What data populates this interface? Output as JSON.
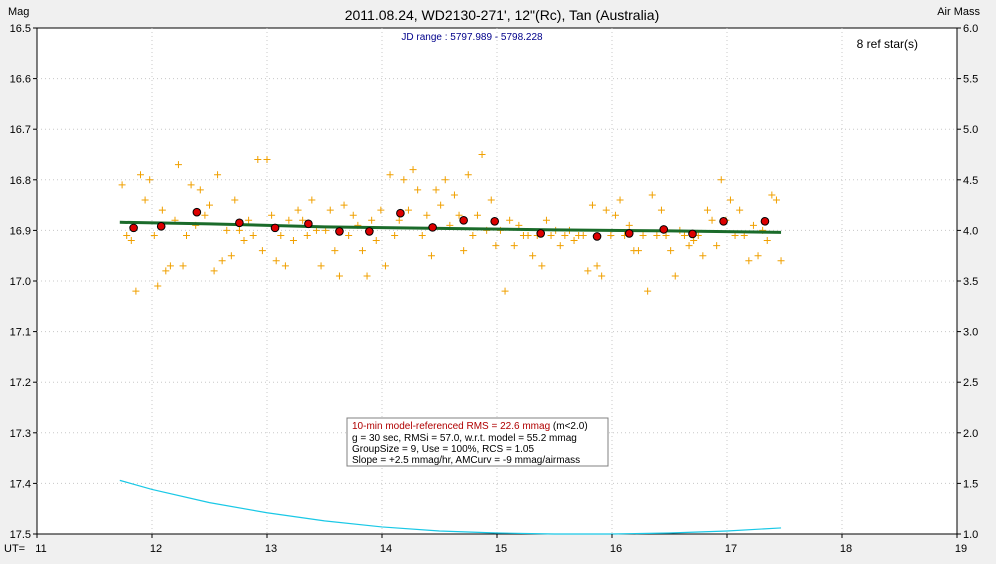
{
  "chart_data": {
    "type": "scatter",
    "title": "2011.08.24, WD2130-271', 12\"(Rc), Tan (Australia)",
    "subtitle": "JD range : 5797.989 - 5798.228",
    "ylabel_left": "Mag",
    "ylabel_right": "Air Mass",
    "xlabel_prefix": "UT=",
    "ref_stars": "8 ref star(s)",
    "xlim": [
      11,
      19
    ],
    "ylim_left": [
      16.5,
      17.5
    ],
    "ylim_right": [
      6.0,
      1.0
    ],
    "left_reversed": true,
    "x_ticks": [
      "11",
      "12",
      "13",
      "14",
      "15",
      "16",
      "17",
      "18",
      "19"
    ],
    "y_ticks_left": [
      "16.5",
      "16.6",
      "16.7",
      "16.8",
      "16.9",
      "17.0",
      "17.1",
      "17.2",
      "17.3",
      "17.4",
      "17.5"
    ],
    "y_ticks_right": [
      "6.0",
      "5.5",
      "5.0",
      "4.5",
      "4.0",
      "3.5",
      "3.0",
      "2.5",
      "2.0",
      "1.5",
      "1.0"
    ],
    "grid": true,
    "colors": {
      "points": "#f0a000",
      "group": "#dd0000",
      "model": "#1a6b2a",
      "airmass": "#19c8e6"
    },
    "series": [
      {
        "kind": "individual_points",
        "marker": "plus",
        "points": [
          [
            11.74,
            16.81
          ],
          [
            11.78,
            16.91
          ],
          [
            11.82,
            16.92
          ],
          [
            11.86,
            17.02
          ],
          [
            11.9,
            16.79
          ],
          [
            11.94,
            16.84
          ],
          [
            11.98,
            16.8
          ],
          [
            12.02,
            16.91
          ],
          [
            12.05,
            17.01
          ],
          [
            12.09,
            16.86
          ],
          [
            12.12,
            16.98
          ],
          [
            12.16,
            16.97
          ],
          [
            12.2,
            16.88
          ],
          [
            12.23,
            16.77
          ],
          [
            12.27,
            16.97
          ],
          [
            12.3,
            16.91
          ],
          [
            12.34,
            16.81
          ],
          [
            12.38,
            16.89
          ],
          [
            12.42,
            16.82
          ],
          [
            12.46,
            16.87
          ],
          [
            12.5,
            16.85
          ],
          [
            12.54,
            16.98
          ],
          [
            12.57,
            16.79
          ],
          [
            12.61,
            16.96
          ],
          [
            12.65,
            16.9
          ],
          [
            12.69,
            16.95
          ],
          [
            12.72,
            16.84
          ],
          [
            12.76,
            16.9
          ],
          [
            12.8,
            16.92
          ],
          [
            12.84,
            16.88
          ],
          [
            12.88,
            16.91
          ],
          [
            12.92,
            16.76
          ],
          [
            12.96,
            16.94
          ],
          [
            13.0,
            16.76
          ],
          [
            13.04,
            16.87
          ],
          [
            13.08,
            16.96
          ],
          [
            13.12,
            16.91
          ],
          [
            13.16,
            16.97
          ],
          [
            13.19,
            16.88
          ],
          [
            13.23,
            16.92
          ],
          [
            13.27,
            16.86
          ],
          [
            13.31,
            16.88
          ],
          [
            13.35,
            16.91
          ],
          [
            13.39,
            16.84
          ],
          [
            13.43,
            16.9
          ],
          [
            13.47,
            16.97
          ],
          [
            13.51,
            16.9
          ],
          [
            13.55,
            16.86
          ],
          [
            13.59,
            16.94
          ],
          [
            13.63,
            16.99
          ],
          [
            13.67,
            16.85
          ],
          [
            13.71,
            16.91
          ],
          [
            13.75,
            16.87
          ],
          [
            13.79,
            16.89
          ],
          [
            13.83,
            16.94
          ],
          [
            13.87,
            16.99
          ],
          [
            13.91,
            16.88
          ],
          [
            13.95,
            16.92
          ],
          [
            13.99,
            16.86
          ],
          [
            14.03,
            16.97
          ],
          [
            14.07,
            16.79
          ],
          [
            14.11,
            16.91
          ],
          [
            14.15,
            16.88
          ],
          [
            14.19,
            16.8
          ],
          [
            14.23,
            16.86
          ],
          [
            14.27,
            16.78
          ],
          [
            14.31,
            16.82
          ],
          [
            14.35,
            16.91
          ],
          [
            14.39,
            16.87
          ],
          [
            14.43,
            16.95
          ],
          [
            14.47,
            16.82
          ],
          [
            14.51,
            16.85
          ],
          [
            14.55,
            16.8
          ],
          [
            14.59,
            16.89
          ],
          [
            14.63,
            16.83
          ],
          [
            14.67,
            16.87
          ],
          [
            14.71,
            16.94
          ],
          [
            14.75,
            16.79
          ],
          [
            14.79,
            16.91
          ],
          [
            14.83,
            16.87
          ],
          [
            14.87,
            16.75
          ],
          [
            14.91,
            16.9
          ],
          [
            14.95,
            16.84
          ],
          [
            14.99,
            16.93
          ],
          [
            15.03,
            16.9
          ],
          [
            15.07,
            17.02
          ],
          [
            15.11,
            16.88
          ],
          [
            15.15,
            16.93
          ],
          [
            15.19,
            16.89
          ],
          [
            15.23,
            16.91
          ],
          [
            15.27,
            16.91
          ],
          [
            15.31,
            16.95
          ],
          [
            15.35,
            16.91
          ],
          [
            15.39,
            16.97
          ],
          [
            15.43,
            16.88
          ],
          [
            15.47,
            16.91
          ],
          [
            15.51,
            16.9
          ],
          [
            15.55,
            16.93
          ],
          [
            15.59,
            16.91
          ],
          [
            15.63,
            16.9
          ],
          [
            15.67,
            16.92
          ],
          [
            15.71,
            16.91
          ],
          [
            15.75,
            16.91
          ],
          [
            15.79,
            16.98
          ],
          [
            15.83,
            16.85
          ],
          [
            15.87,
            16.97
          ],
          [
            15.91,
            16.99
          ],
          [
            15.95,
            16.86
          ],
          [
            15.99,
            16.91
          ],
          [
            16.03,
            16.87
          ],
          [
            16.07,
            16.84
          ],
          [
            16.11,
            16.91
          ],
          [
            16.15,
            16.89
          ],
          [
            16.19,
            16.94
          ],
          [
            16.23,
            16.94
          ],
          [
            16.27,
            16.91
          ],
          [
            16.31,
            17.02
          ],
          [
            16.35,
            16.83
          ],
          [
            16.39,
            16.91
          ],
          [
            16.43,
            16.86
          ],
          [
            16.47,
            16.91
          ],
          [
            16.51,
            16.94
          ],
          [
            16.55,
            16.99
          ],
          [
            16.59,
            16.9
          ],
          [
            16.63,
            16.91
          ],
          [
            16.67,
            16.93
          ],
          [
            16.71,
            16.92
          ],
          [
            16.75,
            16.91
          ],
          [
            16.79,
            16.95
          ],
          [
            16.83,
            16.86
          ],
          [
            16.87,
            16.88
          ],
          [
            16.91,
            16.93
          ],
          [
            16.95,
            16.8
          ],
          [
            16.99,
            16.88
          ],
          [
            17.03,
            16.84
          ],
          [
            17.07,
            16.91
          ],
          [
            17.11,
            16.86
          ],
          [
            17.15,
            16.91
          ],
          [
            17.19,
            16.96
          ],
          [
            17.23,
            16.89
          ],
          [
            17.27,
            16.95
          ],
          [
            17.31,
            16.9
          ],
          [
            17.35,
            16.92
          ],
          [
            17.39,
            16.83
          ],
          [
            17.43,
            16.84
          ],
          [
            17.47,
            16.96
          ]
        ]
      },
      {
        "kind": "group_means",
        "marker": "circle",
        "points": [
          [
            11.84,
            16.895
          ],
          [
            12.08,
            16.892
          ],
          [
            12.39,
            16.864
          ],
          [
            12.76,
            16.885
          ],
          [
            13.07,
            16.895
          ],
          [
            13.36,
            16.887
          ],
          [
            13.63,
            16.902
          ],
          [
            13.89,
            16.902
          ],
          [
            14.16,
            16.866
          ],
          [
            14.44,
            16.894
          ],
          [
            14.71,
            16.88
          ],
          [
            14.98,
            16.882
          ],
          [
            15.38,
            16.906
          ],
          [
            15.87,
            16.912
          ],
          [
            16.15,
            16.906
          ],
          [
            16.45,
            16.898
          ],
          [
            16.7,
            16.907
          ],
          [
            16.97,
            16.882
          ],
          [
            17.33,
            16.882
          ]
        ]
      },
      {
        "kind": "model_line",
        "points": [
          [
            11.72,
            16.884
          ],
          [
            12.5,
            16.887
          ],
          [
            13.5,
            16.893
          ],
          [
            14.5,
            16.896
          ],
          [
            15.5,
            16.899
          ],
          [
            16.5,
            16.901
          ],
          [
            17.47,
            16.904
          ]
        ]
      },
      {
        "kind": "airmass_curve",
        "axis": "right",
        "points": [
          [
            11.72,
            1.53
          ],
          [
            12.0,
            1.44
          ],
          [
            12.5,
            1.31
          ],
          [
            13.0,
            1.21
          ],
          [
            13.5,
            1.13
          ],
          [
            14.0,
            1.07
          ],
          [
            14.5,
            1.03
          ],
          [
            15.0,
            1.01
          ],
          [
            15.5,
            1.0
          ],
          [
            16.0,
            1.0
          ],
          [
            16.5,
            1.01
          ],
          [
            17.0,
            1.03
          ],
          [
            17.47,
            1.06
          ]
        ]
      }
    ],
    "info_box": {
      "line1": "10-min model-referenced RMS = 22.6 mmag",
      "line1_suffix": " (m<2.0)",
      "line2": "g = 30 sec, RMSi = 57.0, w.r.t. model = 55.2 mmag",
      "line3": "GroupSize = 9, Use = 100%, RCS = 1.05",
      "line4": "Slope = +2.5 mmag/hr, AMCurv = -9 mmag/airmass"
    }
  }
}
